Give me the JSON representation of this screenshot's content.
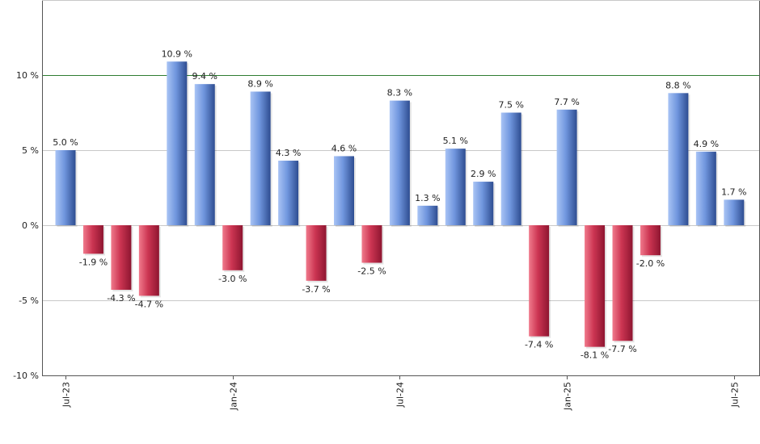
{
  "chart_data": {
    "type": "bar",
    "x_ticks": [
      "Jul-23",
      "Jan-24",
      "Jul-24",
      "Jan-25",
      "Jul-25"
    ],
    "y_ticks": [
      "10 %",
      "5 %",
      "0 %",
      "-5 %",
      "-10 %"
    ],
    "y_tick_values": [
      10,
      5,
      0,
      -5,
      -10
    ],
    "ylim": [
      -10,
      15
    ],
    "reference_line": 10,
    "values": [
      5.0,
      -1.9,
      -4.3,
      -4.7,
      10.9,
      9.4,
      -3.0,
      8.9,
      4.3,
      -3.7,
      4.6,
      -2.5,
      8.3,
      1.3,
      5.1,
      2.9,
      7.5,
      -7.4,
      7.7,
      -8.1,
      -7.7,
      -2.0,
      8.8,
      4.9,
      1.7
    ],
    "value_labels": [
      "5.0 %",
      "-1.9 %",
      "-4.3 %",
      "-4.7 %",
      "10.9 %",
      "9.4 %",
      "-3.0 %",
      "8.9 %",
      "4.3 %",
      "-3.7 %",
      "4.6 %",
      "-2.5 %",
      "8.3 %",
      "1.3 %",
      "5.1 %",
      "2.9 %",
      "7.5 %",
      "-7.4 %",
      "7.7 %",
      "-8.1 %",
      "-7.7 %",
      "-2.0 %",
      "8.8 %",
      "4.9 %",
      "1.7 %"
    ],
    "colors": {
      "positive_light": "#a9c4f5",
      "positive_dark": "#2e4d91",
      "negative_light": "#f07a8c",
      "negative_dark": "#8e1530",
      "reference_line": "#2e7d32",
      "grid": "#c8c8c8"
    },
    "grid": true
  }
}
